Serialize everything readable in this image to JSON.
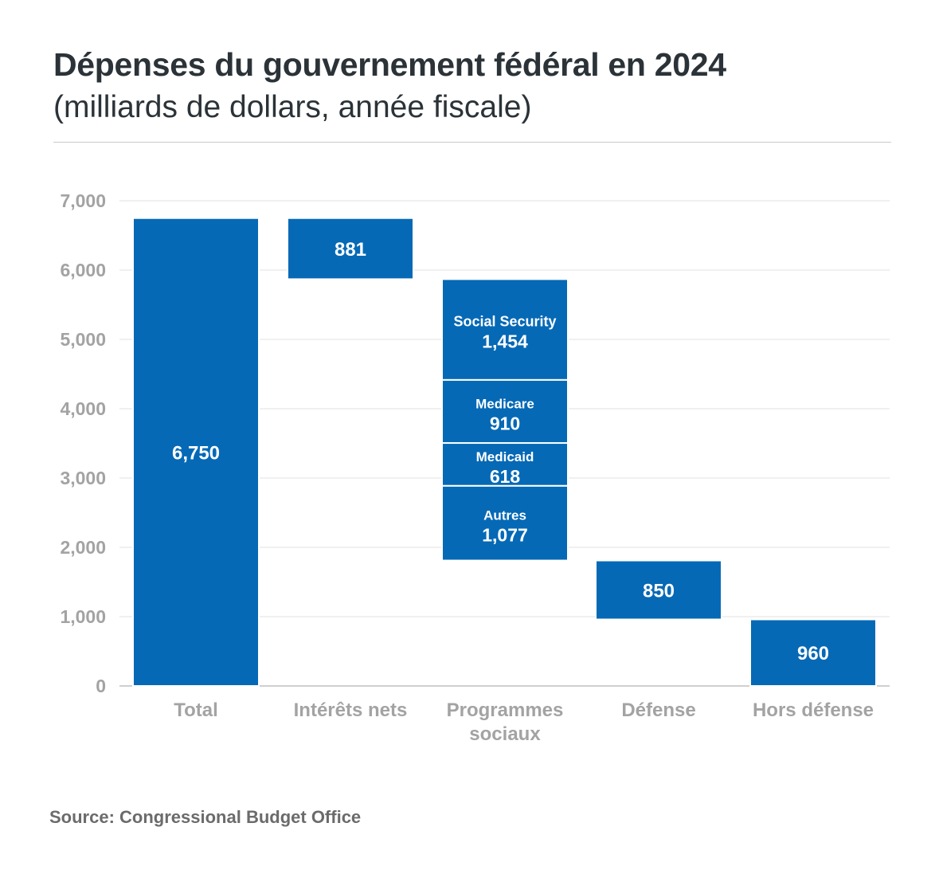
{
  "header": {
    "title": "Dépenses du gouvernement fédéral en 2024",
    "subtitle": "(milliards de dollars, année fiscale)"
  },
  "footer": {
    "source": "Source: Congressional Budget Office"
  },
  "colors": {
    "bar": "#0569b6",
    "bar_text": "#ffffff",
    "axis_text": "#a3a3a3",
    "grid": "#e2e2e2",
    "title": "#2b3338",
    "source": "#6b6b6b"
  },
  "chart_data": {
    "type": "bar",
    "subtype": "waterfall",
    "title": "Dépenses du gouvernement fédéral en 2024",
    "subtitle": "(milliards de dollars, année fiscale)",
    "xlabel": "",
    "ylabel": "",
    "ylim": [
      0,
      7000
    ],
    "yticks": [
      0,
      1000,
      2000,
      3000,
      4000,
      5000,
      6000,
      7000
    ],
    "ytick_labels": [
      "0",
      "1,000",
      "2,000",
      "3,000",
      "4,000",
      "5,000",
      "6,000",
      "7,000"
    ],
    "grid": true,
    "legend": false,
    "categories": [
      "Total",
      "Intérêts nets",
      "Programmes sociaux",
      "Défense",
      "Hors défense"
    ],
    "category_labels": [
      [
        "Total"
      ],
      [
        "Intérêts nets"
      ],
      [
        "Programmes",
        "sociaux"
      ],
      [
        "Défense"
      ],
      [
        "Hors défense"
      ]
    ],
    "bars": [
      {
        "category": "Total",
        "base": 0,
        "value": 6750,
        "label": "6,750"
      },
      {
        "category": "Intérêts nets",
        "base": 5869,
        "value": 881,
        "label": "881"
      },
      {
        "category": "Programmes sociaux",
        "stack": [
          {
            "name": "Social Security",
            "base": 4415,
            "value": 1454,
            "label": "1,454"
          },
          {
            "name": "Medicare",
            "base": 3505,
            "value": 910,
            "label": "910"
          },
          {
            "name": "Medicaid",
            "base": 2887,
            "value": 618,
            "label": "618"
          },
          {
            "name": "Autres",
            "base": 1810,
            "value": 1077,
            "label": "1,077"
          }
        ]
      },
      {
        "category": "Défense",
        "base": 960,
        "value": 850,
        "label": "850"
      },
      {
        "category": "Hors défense",
        "base": 0,
        "value": 960,
        "label": "960"
      }
    ]
  }
}
